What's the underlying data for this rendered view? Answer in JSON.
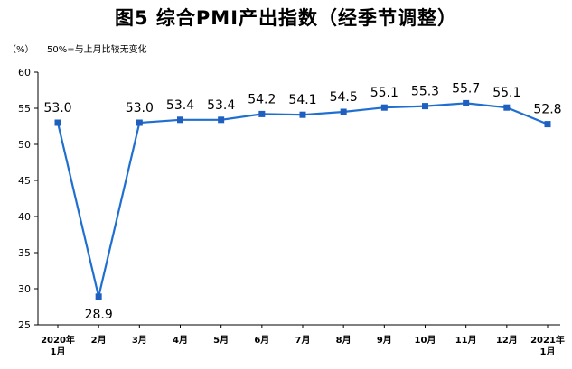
{
  "title": "图5  综合PMI产出指数（经季节调整）",
  "unit_label": "（%）",
  "note": "50%=与上月比较无变化",
  "chart_data": {
    "type": "line",
    "categories": [
      [
        "2020年",
        "1月"
      ],
      [
        "2月"
      ],
      [
        "3月"
      ],
      [
        "4月"
      ],
      [
        "5月"
      ],
      [
        "6月"
      ],
      [
        "7月"
      ],
      [
        "8月"
      ],
      [
        "9月"
      ],
      [
        "10月"
      ],
      [
        "11月"
      ],
      [
        "12月"
      ],
      [
        "2021年",
        "1月"
      ]
    ],
    "values": [
      53.0,
      28.9,
      53.0,
      53.4,
      53.4,
      54.2,
      54.1,
      54.5,
      55.1,
      55.3,
      55.7,
      55.1,
      52.8
    ],
    "data_labels": [
      "53.0",
      "28.9",
      "53.0",
      "53.4",
      "53.4",
      "54.2",
      "54.1",
      "54.5",
      "55.1",
      "55.3",
      "55.7",
      "55.1",
      "52.8"
    ],
    "ylim": [
      25,
      60
    ],
    "yticks": [
      25,
      30,
      35,
      40,
      45,
      50,
      55,
      60
    ],
    "line_color": "#1f6fd1",
    "marker_color": "#1f5fc0"
  }
}
